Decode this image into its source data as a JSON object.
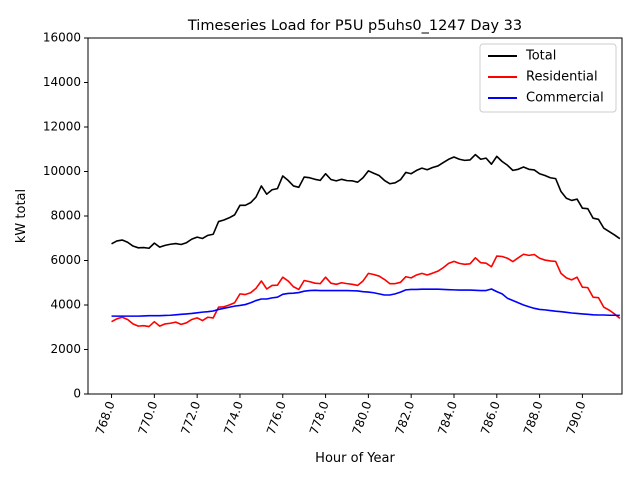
{
  "chart_data": {
    "type": "line",
    "title": "Timeseries Load for P5U p5uhs0_1247  Day 33",
    "xlabel": "Hour of Year",
    "ylabel": "kW total",
    "xlim": [
      766.9,
      791.85
    ],
    "ylim": [
      0,
      16000
    ],
    "xticks": [
      768,
      770,
      772,
      774,
      776,
      778,
      780,
      782,
      784,
      786,
      788,
      790
    ],
    "xtick_labels": [
      "768.0",
      "770.0",
      "772.0",
      "774.0",
      "776.0",
      "778.0",
      "780.0",
      "782.0",
      "784.0",
      "786.0",
      "788.0",
      "790.0"
    ],
    "yticks": [
      0,
      2000,
      4000,
      6000,
      8000,
      10000,
      12000,
      14000,
      16000
    ],
    "ytick_labels": [
      "0",
      "2000",
      "4000",
      "6000",
      "8000",
      "10000",
      "12000",
      "14000",
      "16000"
    ],
    "grid": false,
    "legend_position": "top-right",
    "x_start": 768.0,
    "x_step": 0.25,
    "series": [
      {
        "name": "Total",
        "color": "#000000",
        "values": [
          6750,
          6880,
          6920,
          6820,
          6650,
          6570,
          6580,
          6550,
          6780,
          6600,
          6680,
          6730,
          6760,
          6720,
          6800,
          6960,
          7050,
          6990,
          7130,
          7180,
          7750,
          7820,
          7920,
          8050,
          8480,
          8480,
          8600,
          8850,
          9350,
          8980,
          9180,
          9230,
          9800,
          9600,
          9350,
          9290,
          9750,
          9720,
          9650,
          9600,
          9900,
          9640,
          9580,
          9650,
          9590,
          9580,
          9520,
          9720,
          10030,
          9920,
          9820,
          9600,
          9450,
          9490,
          9630,
          9960,
          9900,
          10050,
          10150,
          10080,
          10180,
          10250,
          10400,
          10550,
          10650,
          10550,
          10500,
          10520,
          10760,
          10550,
          10600,
          10330,
          10680,
          10450,
          10280,
          10050,
          10100,
          10200,
          10100,
          10070,
          9900,
          9820,
          9720,
          9680,
          9100,
          8800,
          8700,
          8760,
          8350,
          8330,
          7900,
          7850,
          7450,
          7300,
          7150,
          6980
        ]
      },
      {
        "name": "Residential",
        "color": "#ff0000",
        "values": [
          3250,
          3380,
          3450,
          3350,
          3150,
          3050,
          3070,
          3030,
          3250,
          3050,
          3150,
          3180,
          3230,
          3130,
          3200,
          3350,
          3420,
          3300,
          3450,
          3420,
          3900,
          3920,
          4000,
          4100,
          4500,
          4470,
          4550,
          4750,
          5080,
          4720,
          4880,
          4890,
          5250,
          5080,
          4820,
          4700,
          5100,
          5050,
          4980,
          4960,
          5250,
          4980,
          4930,
          5000,
          4960,
          4930,
          4880,
          5080,
          5420,
          5370,
          5300,
          5150,
          4960,
          4960,
          5020,
          5270,
          5220,
          5350,
          5420,
          5350,
          5430,
          5520,
          5680,
          5870,
          5960,
          5870,
          5830,
          5850,
          6120,
          5900,
          5880,
          5720,
          6200,
          6180,
          6100,
          5950,
          6120,
          6280,
          6230,
          6270,
          6100,
          6020,
          5980,
          5960,
          5420,
          5220,
          5130,
          5250,
          4800,
          4780,
          4350,
          4330,
          3900,
          3770,
          3600,
          3400
        ]
      },
      {
        "name": "Commercial",
        "color": "#0000ff",
        "values": [
          3500,
          3500,
          3500,
          3500,
          3500,
          3500,
          3510,
          3520,
          3520,
          3520,
          3530,
          3540,
          3560,
          3580,
          3600,
          3620,
          3650,
          3680,
          3700,
          3730,
          3800,
          3850,
          3900,
          3950,
          3980,
          4020,
          4100,
          4200,
          4270,
          4270,
          4320,
          4350,
          4480,
          4520,
          4530,
          4560,
          4620,
          4650,
          4660,
          4650,
          4650,
          4650,
          4650,
          4650,
          4650,
          4640,
          4630,
          4600,
          4580,
          4550,
          4500,
          4450,
          4450,
          4500,
          4580,
          4680,
          4700,
          4700,
          4710,
          4710,
          4710,
          4710,
          4700,
          4690,
          4680,
          4670,
          4670,
          4670,
          4660,
          4650,
          4650,
          4720,
          4600,
          4500,
          4300,
          4200,
          4100,
          4000,
          3920,
          3850,
          3800,
          3780,
          3750,
          3720,
          3700,
          3670,
          3640,
          3620,
          3600,
          3580,
          3560,
          3550,
          3550,
          3540,
          3540,
          3530
        ]
      }
    ]
  }
}
